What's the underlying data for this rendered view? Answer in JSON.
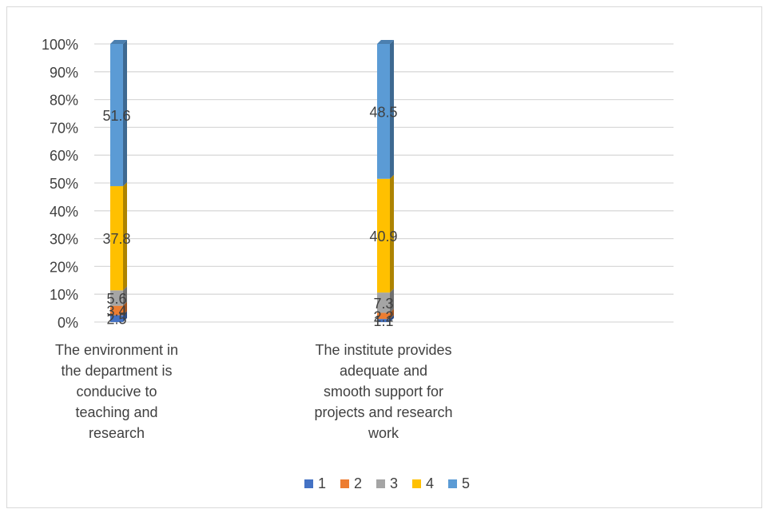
{
  "chart_data": {
    "type": "bar",
    "stacked": true,
    "percent_stacked": true,
    "categories": [
      "The environment in the department is conducive to teaching and research",
      "The institute provides adequate and smooth support for projects and research work"
    ],
    "category_lines": [
      [
        "The environment in",
        "the department is",
        "conducive to",
        "teaching and",
        "research"
      ],
      [
        "The institute provides",
        "adequate and",
        "smooth support for",
        "projects and research",
        "work"
      ]
    ],
    "series": [
      {
        "name": "1",
        "values": [
          2.5,
          1.1
        ],
        "labels": [
          "2.5",
          "1.1"
        ],
        "color": "#4472C4"
      },
      {
        "name": "2",
        "values": [
          3.4,
          2.2
        ],
        "labels": [
          "3.4",
          "2.2"
        ],
        "color": "#ED7D31"
      },
      {
        "name": "3",
        "values": [
          5.6,
          7.3
        ],
        "labels": [
          "5.6",
          "7.3"
        ],
        "color": "#A5A5A5"
      },
      {
        "name": "4",
        "values": [
          37.8,
          40.9
        ],
        "labels": [
          "37.8",
          "40.9"
        ],
        "color": "#FFC000"
      },
      {
        "name": "5",
        "values": [
          51.6,
          48.5
        ],
        "labels": [
          "51.6",
          "48.5"
        ],
        "color": "#5B9BD5"
      }
    ],
    "y_ticks": [
      "0%",
      "10%",
      "20%",
      "30%",
      "40%",
      "50%",
      "60%",
      "70%",
      "80%",
      "90%",
      "100%"
    ],
    "ylim": [
      0,
      100
    ],
    "grid": true,
    "legend": "bottom",
    "title": "",
    "xlabel": "",
    "ylabel": ""
  }
}
